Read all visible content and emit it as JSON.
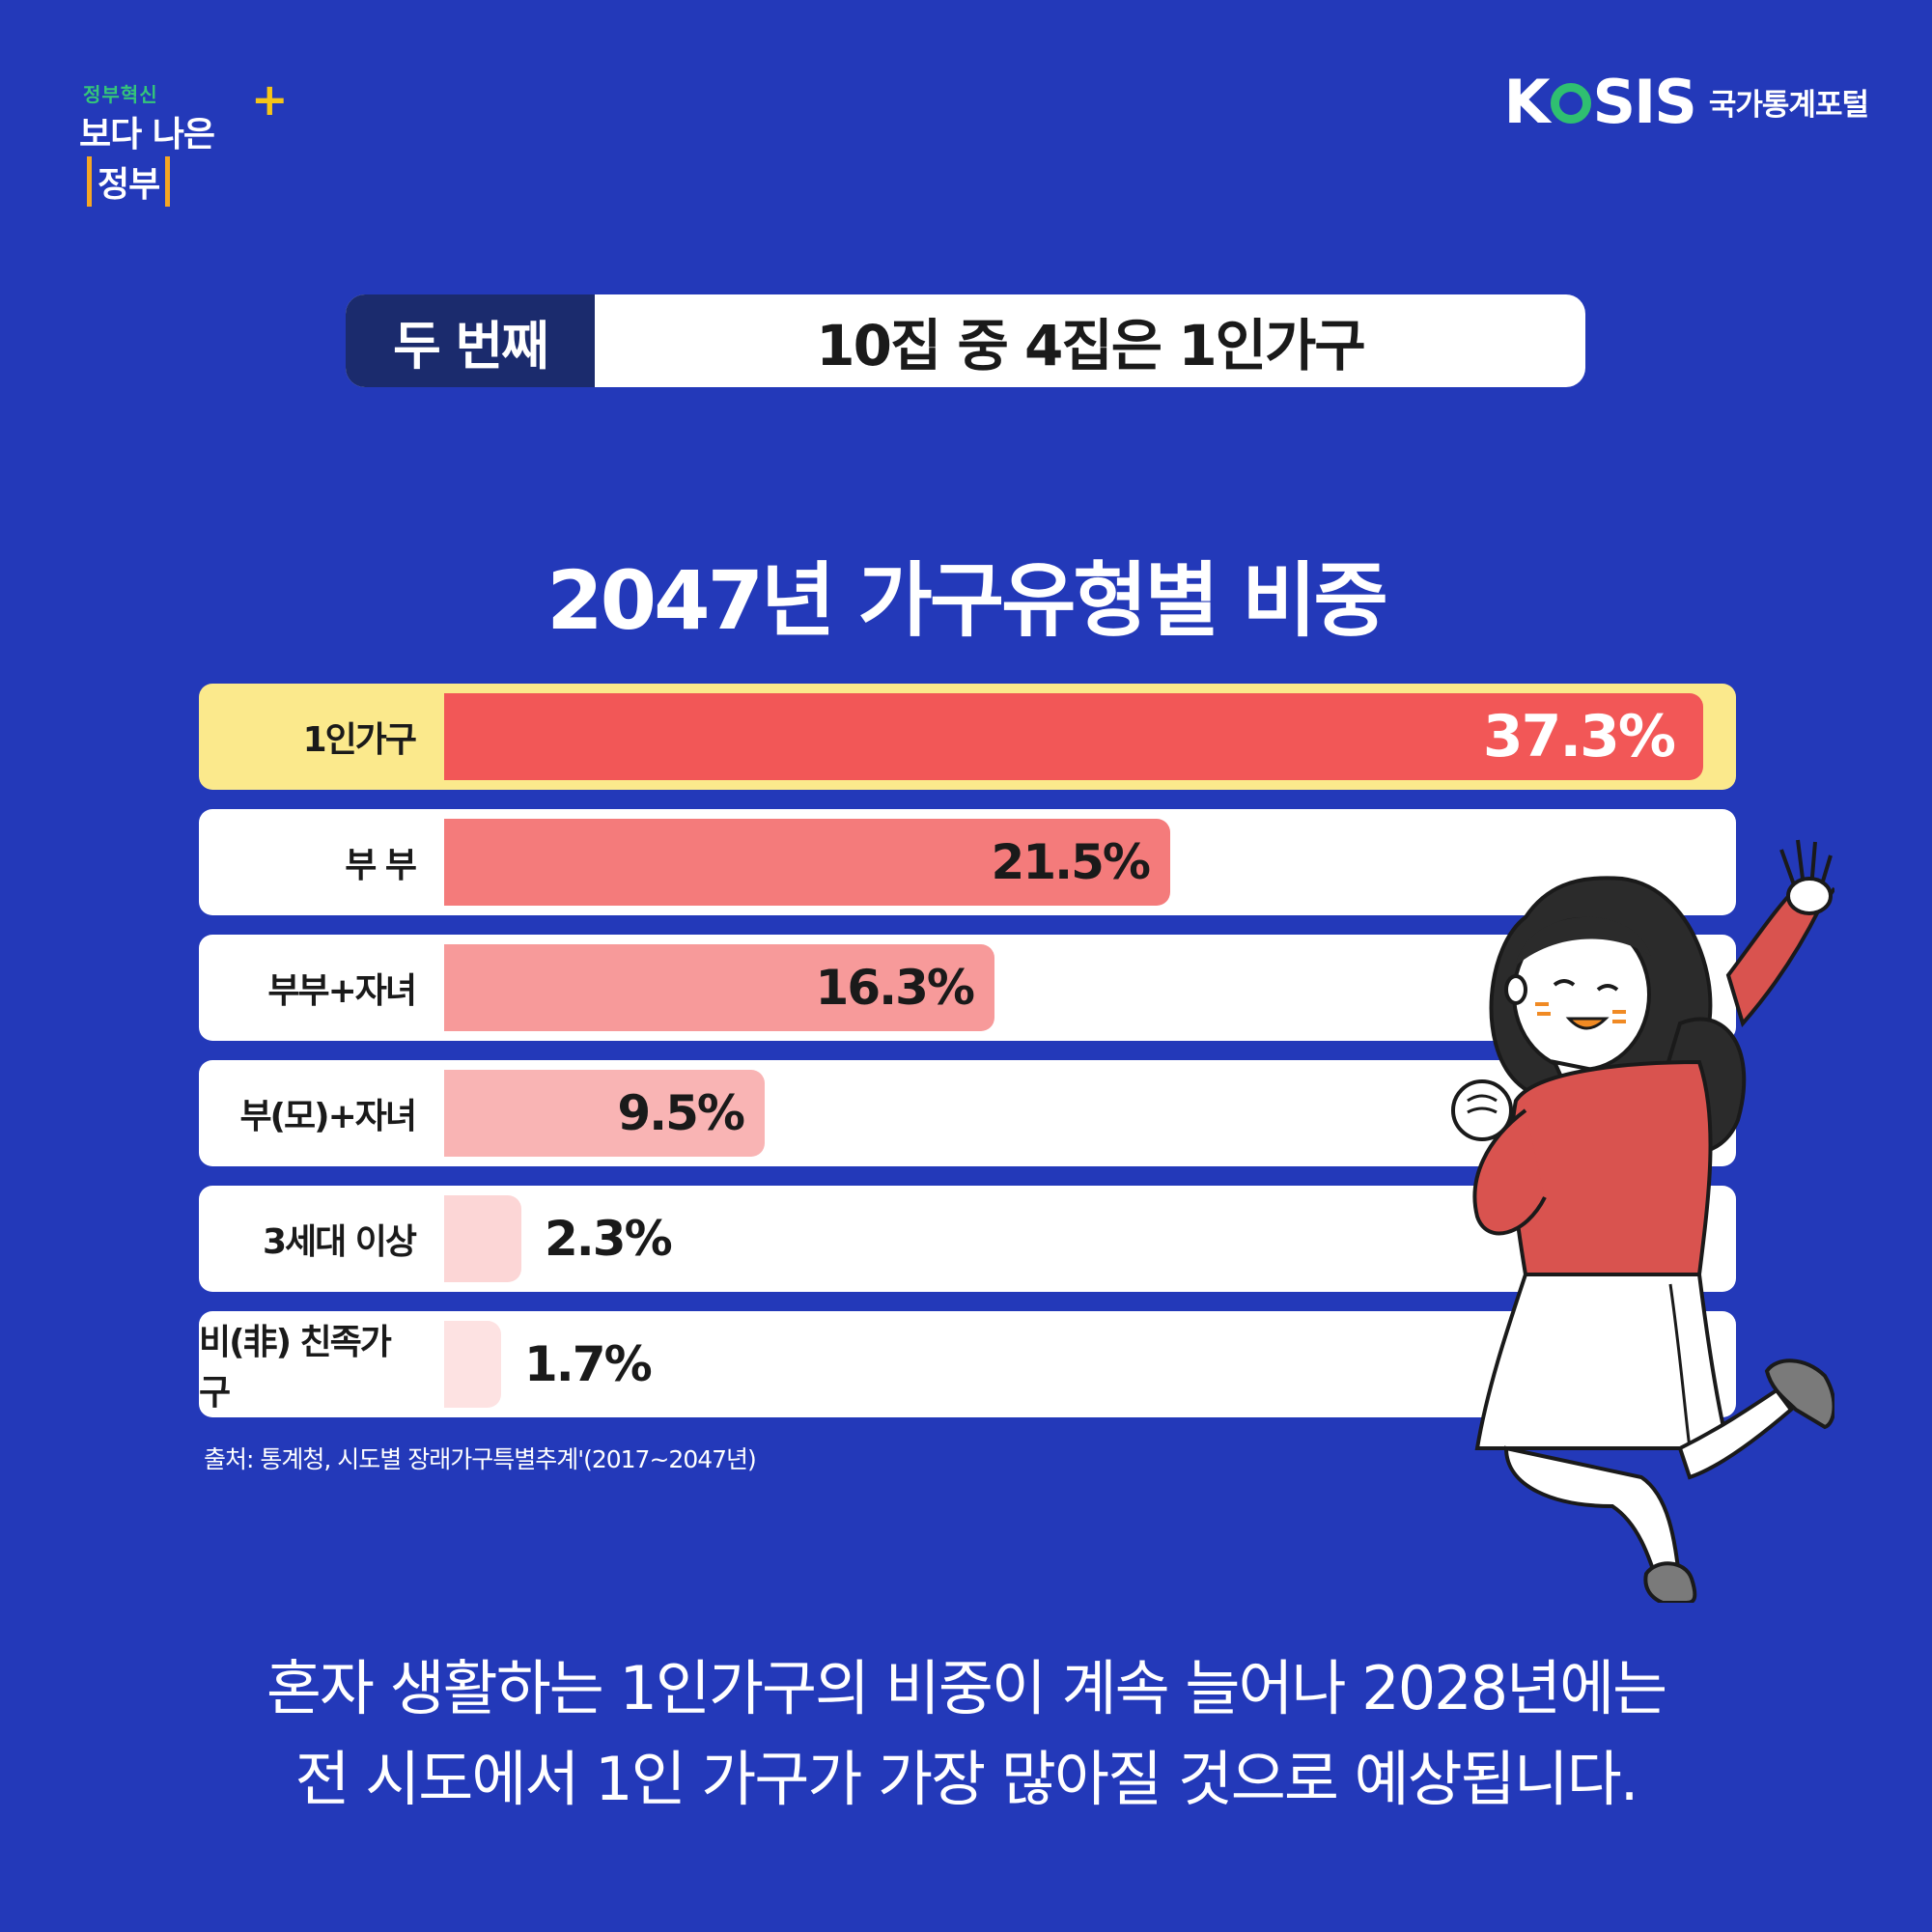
{
  "brand": {
    "gov_small": "정부혁신",
    "gov_main_pre": "보다 나은",
    "gov_main_bracket": "정부",
    "gov_plus": "+",
    "kosis_k": "K",
    "kosis_rest": "SIS",
    "kosis_sub": "국가통계포털"
  },
  "header": {
    "tag": "두 번째",
    "text": "10집 중 4집은 1인가구"
  },
  "chart_data": {
    "type": "bar",
    "orientation": "horizontal",
    "title": "2047년 가구유형별 비중",
    "categories": [
      "1인가구",
      "부 부",
      "부부+자녀",
      "부(모)+자녀",
      "3세대 이상",
      "비(非) 친족가구"
    ],
    "values": [
      37.3,
      21.5,
      16.3,
      9.5,
      2.3,
      1.7
    ],
    "value_labels": [
      "37.3%",
      "21.5%",
      "16.3%",
      "9.5%",
      "2.3%",
      "1.7%"
    ],
    "unit": "%",
    "highlight_index": 0,
    "colors": [
      "#f25757",
      "#f47b7b",
      "#f79a9a",
      "#f9b4b4",
      "#fcd6d6",
      "#fde2e2"
    ],
    "highlight_bg": "#fbe98c",
    "xlim": [
      0,
      37.3
    ]
  },
  "source": "출처: 통계청, 시도별 장래가구특별추계'(2017~2047년)",
  "bottom": {
    "line1": "혼자 생활하는 1인가구의 비중이 계속 늘어나 2028년에는",
    "line2": "전 시도에서 1인 가구가 가장 많아질 것으로 예상됩니다."
  }
}
